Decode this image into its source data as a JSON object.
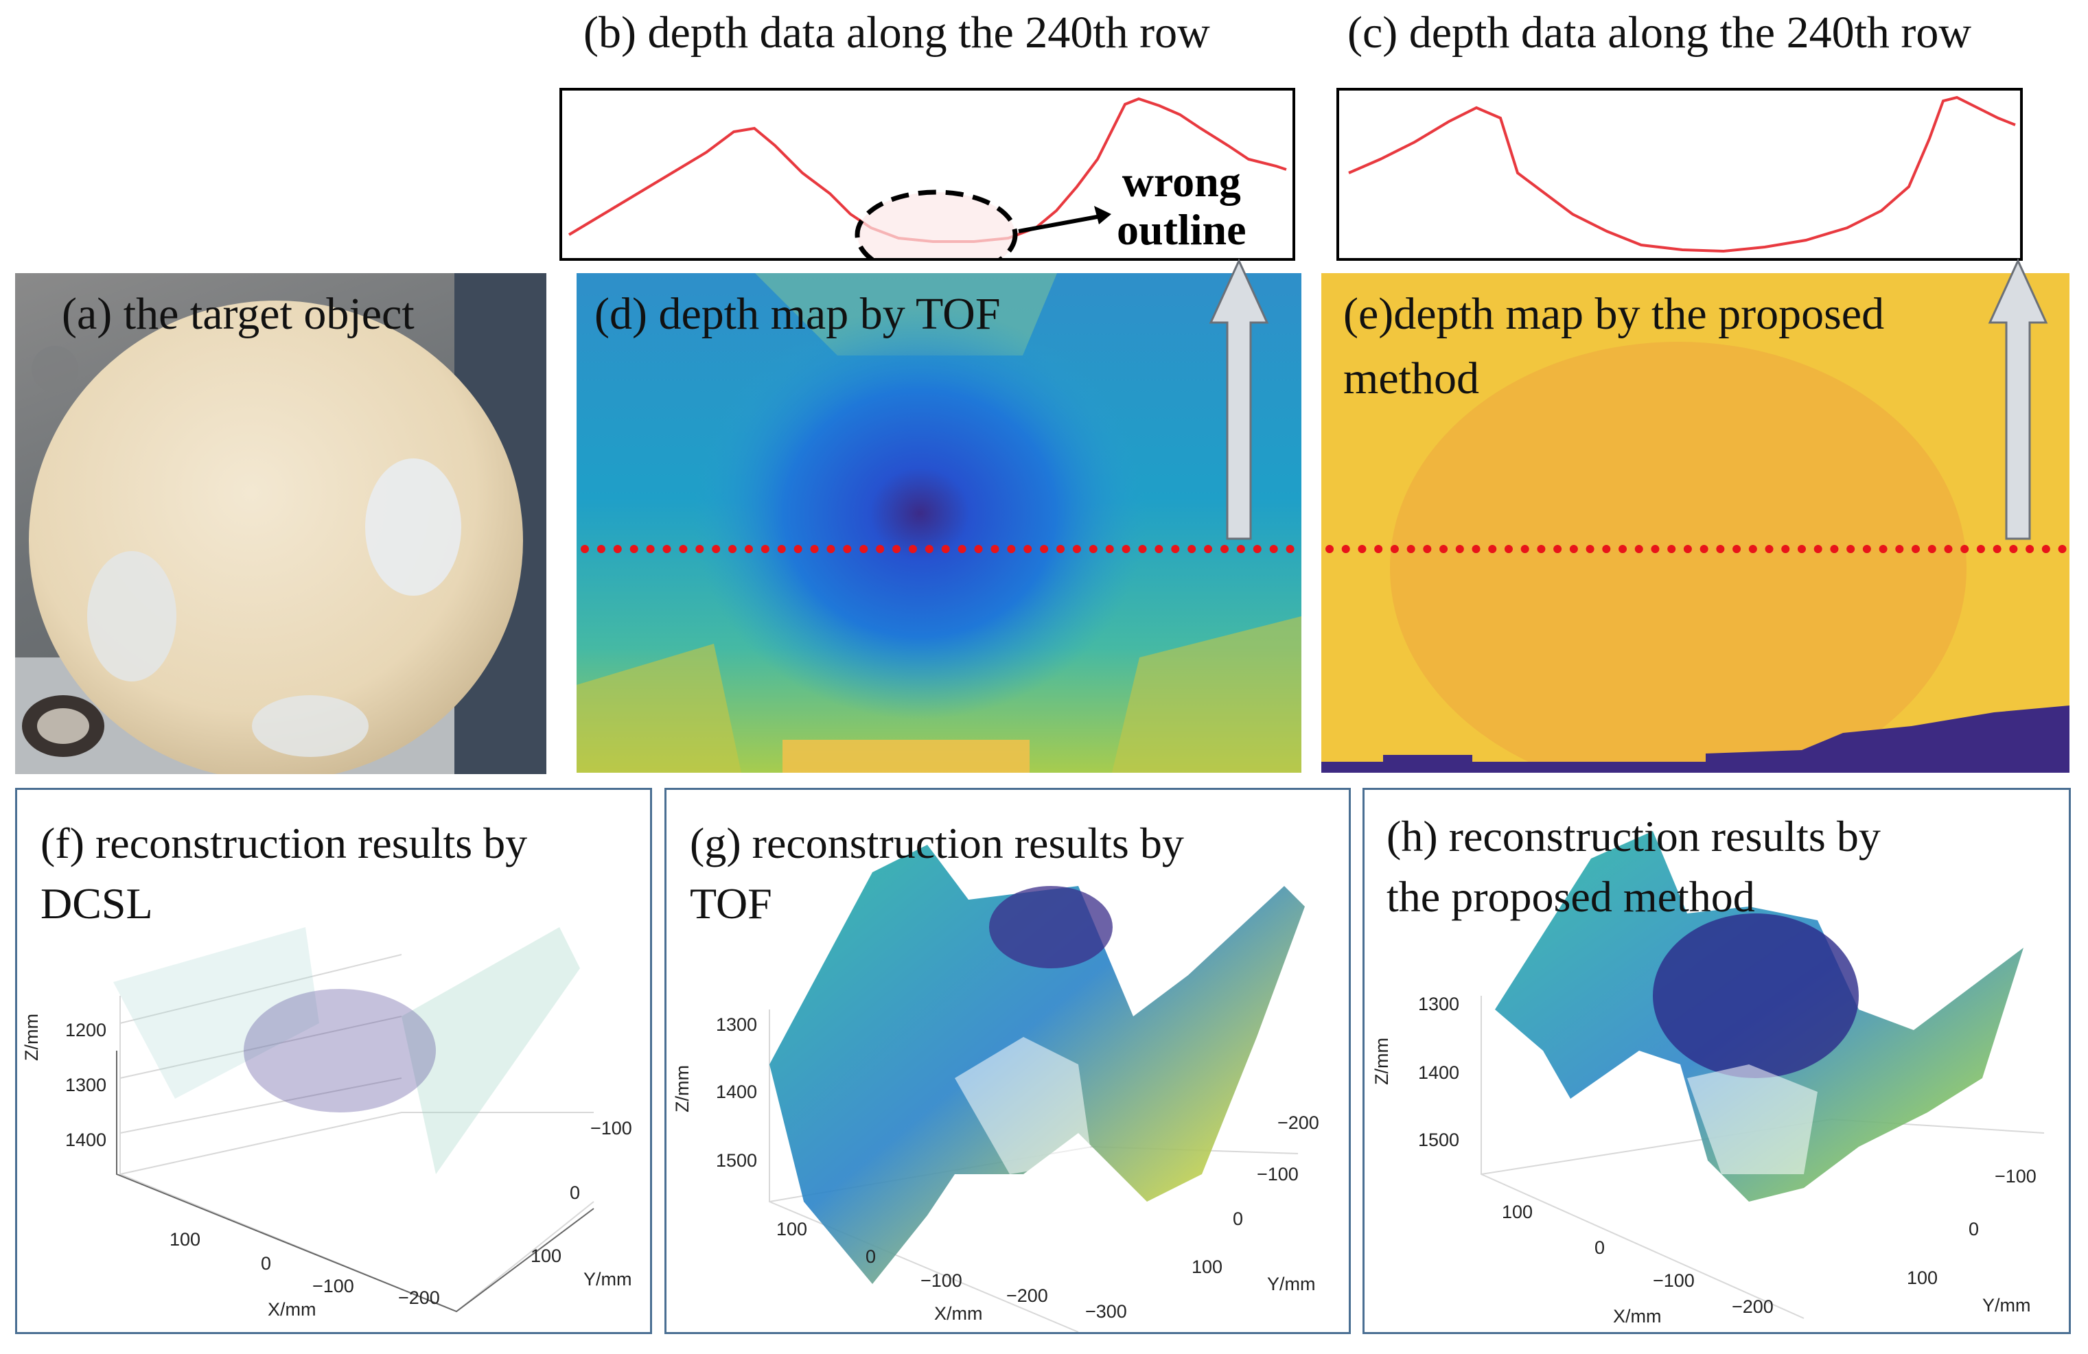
{
  "labels": {
    "a": "(a) the target object",
    "b": "(b) depth data along the 240th row",
    "c": "(c) depth data along the 240th row",
    "d": "(d) depth map by TOF",
    "e_line1": "(e)depth map by the proposed",
    "e_line2": "method",
    "f_line1": "(f) reconstruction results by",
    "f_line2": "DCSL",
    "g_line1": "(g) reconstruction results by",
    "g_line2": "TOF",
    "h_line1": "(h) reconstruction results by",
    "h_line2": "the proposed method",
    "wrong1": "wrong",
    "wrong2": "outline"
  },
  "axes": {
    "z_label": "Z/mm",
    "x_label": "X/mm",
    "y_label": "Y/mm",
    "f": {
      "z_ticks": [
        "1200",
        "1300",
        "1400"
      ],
      "x_ticks": [
        "100",
        "0",
        "−100",
        "−200"
      ],
      "y_ticks": [
        "−100",
        "0",
        "100"
      ]
    },
    "g": {
      "z_ticks": [
        "1300",
        "1400",
        "1500"
      ],
      "x_ticks": [
        "100",
        "0",
        "−100",
        "−200",
        "−300"
      ],
      "y_ticks": [
        "−200",
        "−100",
        "0",
        "100"
      ]
    },
    "h": {
      "z_ticks": [
        "1300",
        "1400",
        "1500"
      ],
      "x_ticks": [
        "100",
        "0",
        "−100",
        "−200"
      ],
      "y_ticks": [
        "−100",
        "0",
        "100"
      ]
    }
  }
}
